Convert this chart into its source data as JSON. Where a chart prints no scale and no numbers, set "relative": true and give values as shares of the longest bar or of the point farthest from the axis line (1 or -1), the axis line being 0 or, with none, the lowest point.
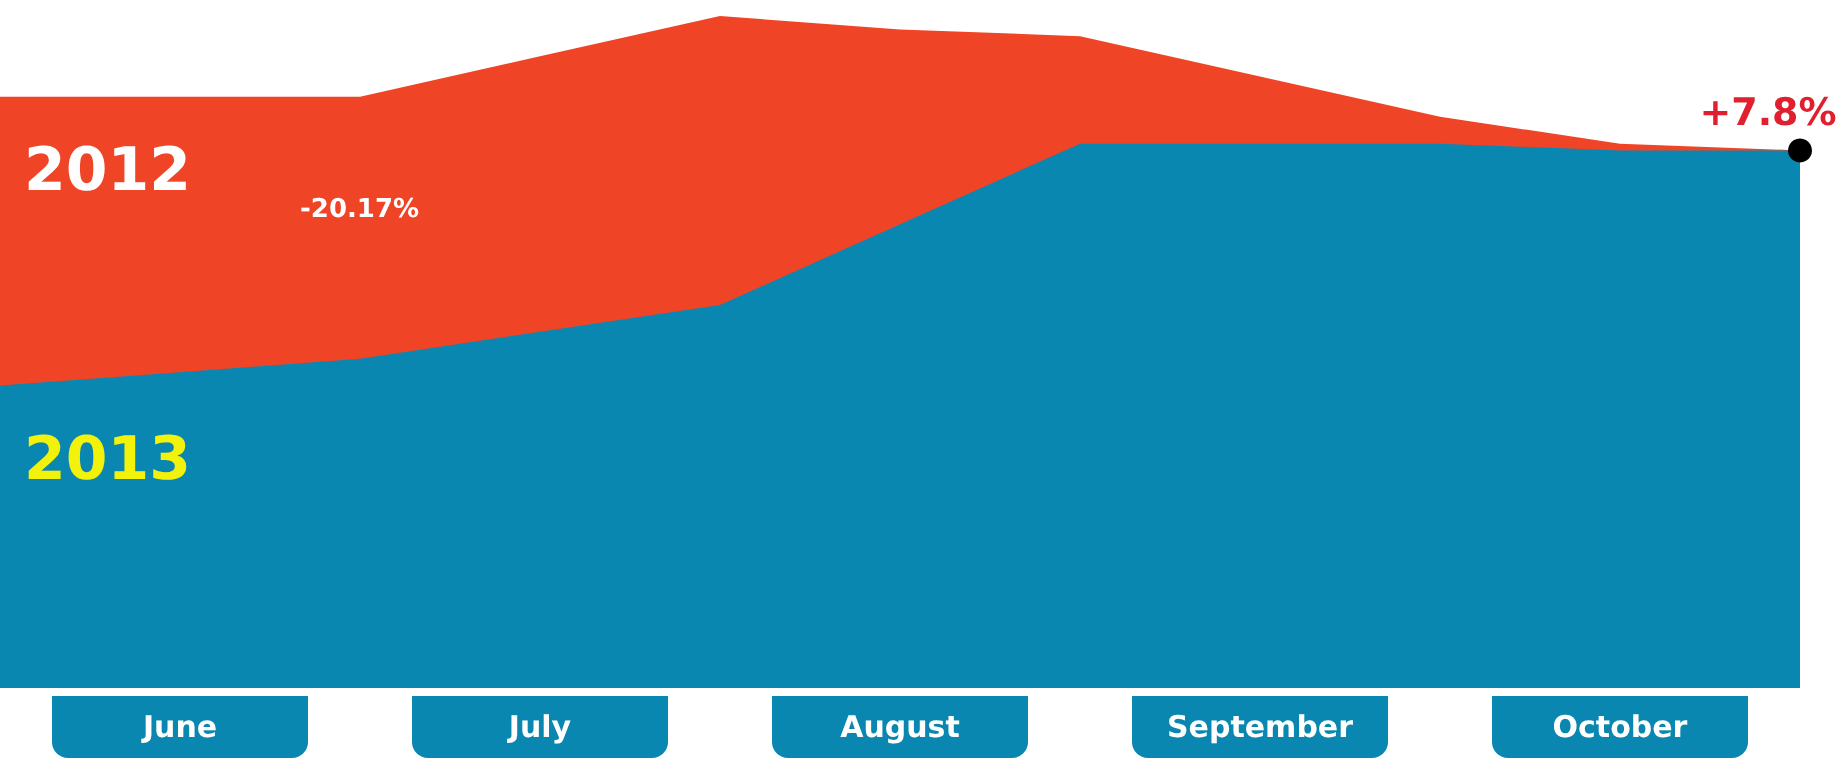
{
  "chart_data": {
    "type": "area",
    "relative": true,
    "categories": [
      null,
      "June",
      null,
      "July",
      null,
      "August",
      null,
      "September",
      null,
      "October",
      null
    ],
    "series": [
      {
        "name": "2012",
        "color": "#ef4426",
        "values": [
          0.88,
          0.88,
          0.88,
          0.94,
          1,
          0.98,
          0.97,
          0.91,
          0.85,
          0.81,
          0.8
        ]
      },
      {
        "name": "2013",
        "color": "#0a87b0",
        "values": [
          0.45,
          0.47,
          0.49,
          0.53,
          0.57,
          0.69,
          0.81,
          0.81,
          0.81,
          0.8,
          0.8
        ]
      }
    ],
    "annotations": [
      "-20.17%",
      {
        "text": "+7.8%",
        "y": 0.8
      }
    ],
    "grid": false,
    "legend": false
  }
}
